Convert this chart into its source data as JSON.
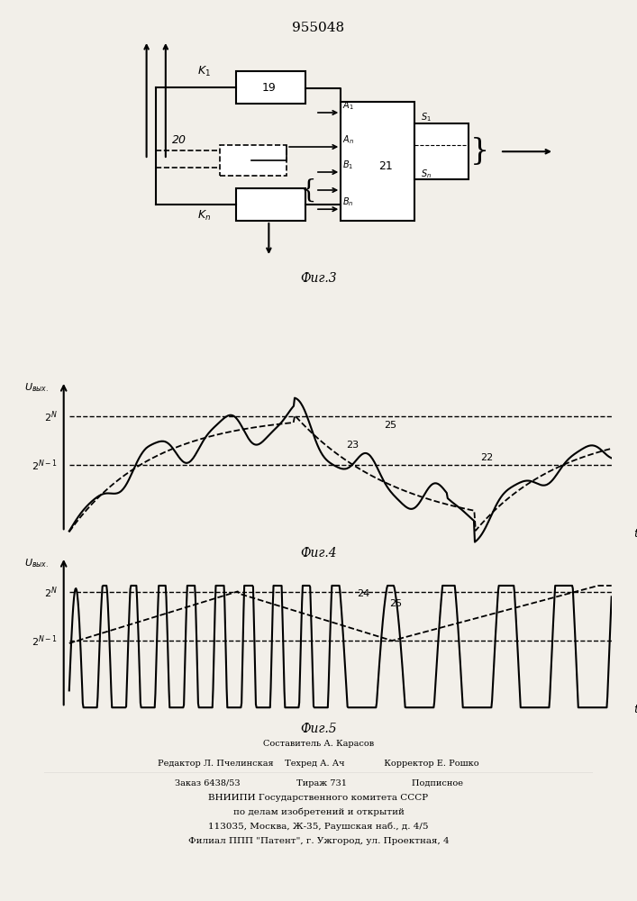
{
  "title": "955048",
  "fig3_label": "Фиг.3",
  "fig4_label": "Фиг.4",
  "fig5_label": "Фиг.5",
  "bg_color": "#f2efe9",
  "line_color": "#000000",
  "footer_lines": [
    "Составитель А. Карасов",
    "Редактор Л. Пчелинская    Техред А. Ач              Корректор Е. Рошко",
    "Заказ 6438/53                    Тираж 731                       Подписное",
    "ВНИИПИ Государственного комитета СССР",
    "по делам изобретений и открытий",
    "113035, Москва, Ж-35, Раушская наб., д. 4/5",
    "Филиал ППП \"Патент\", г. Ужгород, ул. Проектная, 4"
  ]
}
